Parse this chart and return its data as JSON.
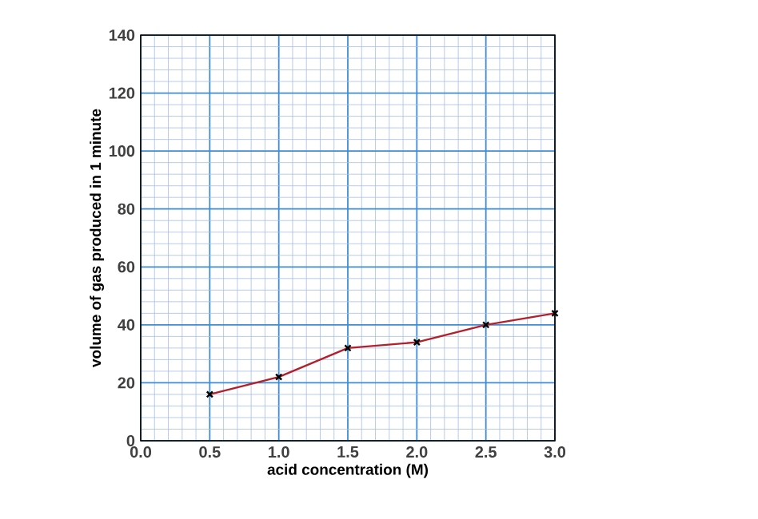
{
  "chart_data": {
    "type": "line",
    "xlabel": "acid concentration (M)",
    "ylabel": "volume of gas produced in 1 minute",
    "x": [
      0.5,
      1.0,
      1.5,
      2.0,
      2.5,
      3.0
    ],
    "series": [
      {
        "color": "#b3202a",
        "values": [
          16,
          22,
          32,
          34,
          40,
          44
        ]
      }
    ],
    "xlim": [
      0,
      3
    ],
    "ylim": [
      0,
      140
    ],
    "xticks": [
      {
        "value": 0,
        "label": "0.0"
      },
      {
        "value": 0.1,
        "label": null
      },
      {
        "value": 0.2,
        "label": null
      },
      {
        "value": 0.3,
        "label": null
      },
      {
        "value": 0.4,
        "label": null
      },
      0.5,
      {
        "value": 0.6,
        "label": null
      },
      {
        "value": 0.7,
        "label": null
      },
      {
        "value": 0.8,
        "label": null
      },
      {
        "value": 0.9,
        "label": null
      },
      {
        "value": 1,
        "label": "1.0"
      },
      {
        "value": 1.1,
        "label": null
      },
      {
        "value": 1.2,
        "label": null
      },
      {
        "value": 1.3,
        "label": null
      },
      {
        "value": 1.4,
        "label": null
      },
      1.5,
      {
        "value": 1.6,
        "label": null
      },
      {
        "value": 1.7,
        "label": null
      },
      {
        "value": 1.8,
        "label": null
      },
      {
        "value": 1.9,
        "label": null
      },
      {
        "value": 2,
        "label": "2.0"
      },
      {
        "value": 2.1,
        "label": null
      },
      {
        "value": 2.2,
        "label": null
      },
      {
        "value": 2.3,
        "label": null
      },
      {
        "value": 2.4,
        "label": null
      },
      2.5,
      {
        "value": 2.6,
        "label": null
      },
      {
        "value": 2.7,
        "label": null
      },
      {
        "value": 2.8,
        "label": null
      },
      {
        "value": 2.9,
        "label": null
      },
      {
        "value": 3,
        "label": "3.0"
      }
    ],
    "yticks": [
      0,
      {
        "value": 4,
        "label": null
      },
      {
        "value": 8,
        "label": null
      },
      {
        "value": 12,
        "label": null
      },
      {
        "value": 16,
        "label": null
      },
      20,
      {
        "value": 24,
        "label": null
      },
      {
        "value": 28,
        "label": null
      },
      {
        "value": 32,
        "label": null
      },
      {
        "value": 36,
        "label": null
      },
      40,
      {
        "value": 44,
        "label": null
      },
      {
        "value": 48,
        "label": null
      },
      {
        "value": 52,
        "label": null
      },
      {
        "value": 56,
        "label": null
      },
      60,
      {
        "value": 64,
        "label": null
      },
      {
        "value": 68,
        "label": null
      },
      {
        "value": 72,
        "label": null
      },
      {
        "value": 76,
        "label": null
      },
      80,
      {
        "value": 84,
        "label": null
      },
      {
        "value": 88,
        "label": null
      },
      {
        "value": 92,
        "label": null
      },
      {
        "value": 96,
        "label": null
      },
      100,
      {
        "value": 104,
        "label": null
      },
      {
        "value": 108,
        "label": null
      },
      {
        "value": 112,
        "label": null
      },
      {
        "value": 116,
        "label": null
      },
      120,
      {
        "value": 124,
        "label": null
      },
      {
        "value": 128,
        "label": null
      },
      {
        "value": 132,
        "label": null
      },
      {
        "value": 136,
        "label": null
      },
      140
    ],
    "grid": true,
    "marker": "cross",
    "line_style": "solid"
  }
}
